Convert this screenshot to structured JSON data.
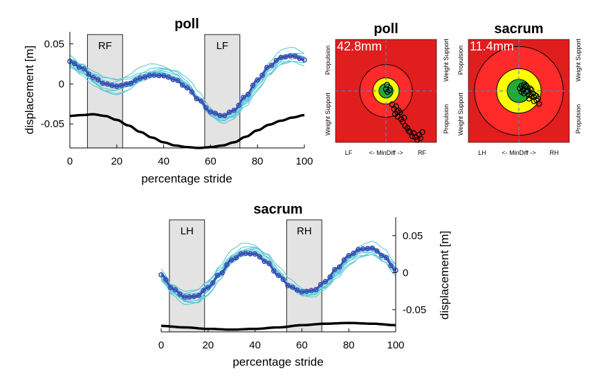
{
  "chart_data": [
    {
      "id": "poll_line",
      "type": "line",
      "title": "poll",
      "xlabel": "percentage stride",
      "ylabel": "displacement [m]",
      "xlim": [
        0,
        100
      ],
      "ylim": [
        -0.08,
        0.065
      ],
      "xticks": [
        0,
        20,
        40,
        60,
        80,
        100
      ],
      "xtick_labels": [
        "0",
        "20",
        "40",
        "60",
        "80",
        "100"
      ],
      "yticks": [
        0.05,
        0,
        -0.05
      ],
      "ytick_labels": [
        "0.05",
        "0",
        "-0.05"
      ],
      "y_axis_side": "left",
      "bands": [
        {
          "label": "RF",
          "x0": 7.5,
          "x1": 22.5
        },
        {
          "label": "LF",
          "x0": 57.5,
          "x1": 72.5
        }
      ],
      "series": [
        {
          "role": "mean",
          "color": "#3a4fb3",
          "x": [
            0,
            5,
            10,
            15,
            20,
            25,
            30,
            35,
            40,
            45,
            50,
            55,
            60,
            65,
            70,
            75,
            80,
            85,
            90,
            95,
            100
          ],
          "y": [
            0.028,
            0.02,
            0.008,
            0.0,
            -0.003,
            0.0,
            0.007,
            0.011,
            0.01,
            0.005,
            -0.005,
            -0.02,
            -0.035,
            -0.04,
            -0.033,
            -0.015,
            0.005,
            0.022,
            0.033,
            0.035,
            0.03
          ]
        },
        {
          "role": "ground",
          "color": "#000000",
          "x": [
            0,
            5,
            10,
            15,
            20,
            25,
            30,
            35,
            40,
            45,
            50,
            55,
            60,
            65,
            70,
            75,
            80,
            85,
            90,
            95,
            100
          ],
          "y": [
            -0.04,
            -0.039,
            -0.038,
            -0.04,
            -0.045,
            -0.052,
            -0.06,
            -0.067,
            -0.073,
            -0.077,
            -0.079,
            -0.08,
            -0.079,
            -0.077,
            -0.073,
            -0.066,
            -0.058,
            -0.051,
            -0.046,
            -0.042,
            -0.039
          ]
        }
      ],
      "individual_strides_color": "#5bc8d6"
    },
    {
      "id": "sacrum_line",
      "type": "line",
      "title": "sacrum",
      "xlabel": "percentage stride",
      "ylabel": "displacement [m]",
      "xlim": [
        0,
        100
      ],
      "ylim": [
        -0.08,
        0.075
      ],
      "xticks": [
        0,
        20,
        40,
        60,
        80,
        100
      ],
      "xtick_labels": [
        "0",
        "20",
        "40",
        "60",
        "80",
        "100"
      ],
      "yticks": [
        0.05,
        0,
        -0.05
      ],
      "ytick_labels": [
        "0.05",
        "0",
        "-0.05"
      ],
      "y_axis_side": "right",
      "bands": [
        {
          "label": "LH",
          "x0": 3.5,
          "x1": 18.5
        },
        {
          "label": "RH",
          "x0": 53.5,
          "x1": 68.5
        }
      ],
      "series": [
        {
          "role": "mean",
          "color": "#3a4fb3",
          "x": [
            0,
            5,
            10,
            15,
            20,
            25,
            30,
            35,
            40,
            45,
            50,
            55,
            60,
            65,
            70,
            75,
            80,
            85,
            90,
            95,
            100
          ],
          "y": [
            -0.003,
            -0.022,
            -0.033,
            -0.032,
            -0.02,
            -0.002,
            0.017,
            0.026,
            0.025,
            0.014,
            -0.004,
            -0.019,
            -0.026,
            -0.024,
            -0.012,
            0.006,
            0.023,
            0.032,
            0.033,
            0.022,
            0.003
          ]
        },
        {
          "role": "ground",
          "color": "#000000",
          "x": [
            0,
            10,
            20,
            30,
            40,
            50,
            60,
            70,
            80,
            90,
            100
          ],
          "y": [
            -0.072,
            -0.074,
            -0.076,
            -0.077,
            -0.076,
            -0.074,
            -0.071,
            -0.069,
            -0.068,
            -0.069,
            -0.071
          ]
        }
      ],
      "individual_strides_color": "#5bc8d6"
    },
    {
      "id": "poll_target",
      "type": "scatter",
      "title": "poll",
      "readout": "42.8mm",
      "xlabel_left": "LF",
      "xlabel_center": "<- MinDiff ->",
      "xlabel_right": "RF",
      "side_labels_left": [
        "Propulsion",
        "Weight Support"
      ],
      "side_labels_right": [
        "Weight Support",
        "Propulsion"
      ],
      "xlim": [
        -1,
        1
      ],
      "ylim": [
        -1,
        1
      ],
      "rings": [
        {
          "r": 0.52,
          "fill": "#ff2a2a"
        },
        {
          "r": 0.26,
          "fill": "#ffff00"
        },
        {
          "r": 0.14,
          "fill": "#22aa33"
        }
      ],
      "background": "#e01e1e",
      "points": {
        "x": [
          0.0,
          0.03,
          0.07,
          0.02,
          0.12,
          0.16,
          0.2,
          0.22,
          0.18,
          0.25,
          0.28,
          0.23,
          0.3,
          0.33,
          0.36,
          0.38,
          0.42,
          0.45,
          0.48,
          0.52,
          0.55,
          0.58,
          0.62,
          0.66,
          0.68,
          0.72
        ],
        "y": [
          0.03,
          -0.02,
          0.01,
          0.12,
          -0.26,
          -0.35,
          -0.3,
          -0.4,
          -0.45,
          -0.38,
          -0.42,
          -0.5,
          -0.55,
          -0.6,
          -0.52,
          -0.68,
          -0.72,
          -0.78,
          -0.8,
          -0.88,
          -0.82,
          -0.9,
          -0.95,
          -0.85,
          -0.92,
          -0.8
        ]
      }
    },
    {
      "id": "sacrum_target",
      "type": "scatter",
      "title": "sacrum",
      "readout": "11.4mm",
      "xlabel_left": "LH",
      "xlabel_center": "<- MinDiff ->",
      "xlabel_right": "RH",
      "side_labels_left": [
        "Propulsion",
        "Weight Support"
      ],
      "side_labels_right": [
        "Weight Support",
        "Propulsion"
      ],
      "xlim": [
        -1,
        1
      ],
      "ylim": [
        -1,
        1
      ],
      "rings": [
        {
          "r": 0.88,
          "fill": "#ff2a2a"
        },
        {
          "r": 0.44,
          "fill": "#ffff00"
        },
        {
          "r": 0.23,
          "fill": "#22aa33"
        }
      ],
      "background": "#e01e1e",
      "points": {
        "x": [
          0.02,
          0.05,
          0.08,
          0.1,
          0.12,
          0.15,
          0.18,
          0.2,
          0.22,
          0.25,
          0.28,
          0.3,
          0.32,
          0.35,
          0.38,
          0.4,
          0.05,
          0.1,
          0.15,
          0.2,
          0.25,
          0.3,
          0.35
        ],
        "y": [
          0.05,
          0.1,
          0.02,
          -0.05,
          0.08,
          -0.02,
          0.0,
          -0.08,
          0.05,
          -0.1,
          -0.05,
          -0.12,
          -0.08,
          -0.18,
          -0.15,
          -0.25,
          -0.02,
          0.12,
          0.1,
          -0.15,
          0.02,
          -0.2,
          -0.1
        ]
      }
    }
  ]
}
